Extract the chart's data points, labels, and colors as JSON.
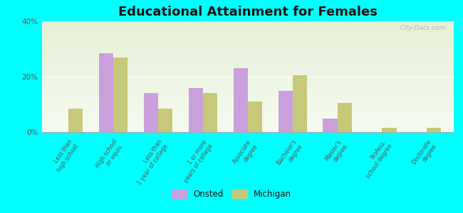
{
  "title": "Educational Attainment for Females",
  "categories": [
    "Less than\nhigh school",
    "High school\nor equiv.",
    "Less than\n1 year of college",
    "1 or more\nyears of college",
    "Associate\ndegree",
    "Bachelor's\ndegree",
    "Master's\ndegree",
    "Profess.\nschool degree",
    "Doctorate\ndegree"
  ],
  "onsted": [
    0,
    28.5,
    14.0,
    16.0,
    23.0,
    15.0,
    5.0,
    0,
    0
  ],
  "michigan": [
    8.5,
    27.0,
    8.5,
    14.0,
    11.0,
    20.5,
    10.5,
    1.5,
    1.5
  ],
  "onsted_color": "#c9a0dc",
  "michigan_color": "#c8c87a",
  "figure_bg": "#00ffff",
  "plot_bg": "#eef7e8",
  "ylim": [
    0,
    40
  ],
  "yticks": [
    0,
    20,
    40
  ],
  "ytick_labels": [
    "0%",
    "20%",
    "40%"
  ],
  "title_fontsize": 13,
  "watermark": "City-Data.com",
  "legend_onsted": "Onsted",
  "legend_michigan": "Michigan"
}
